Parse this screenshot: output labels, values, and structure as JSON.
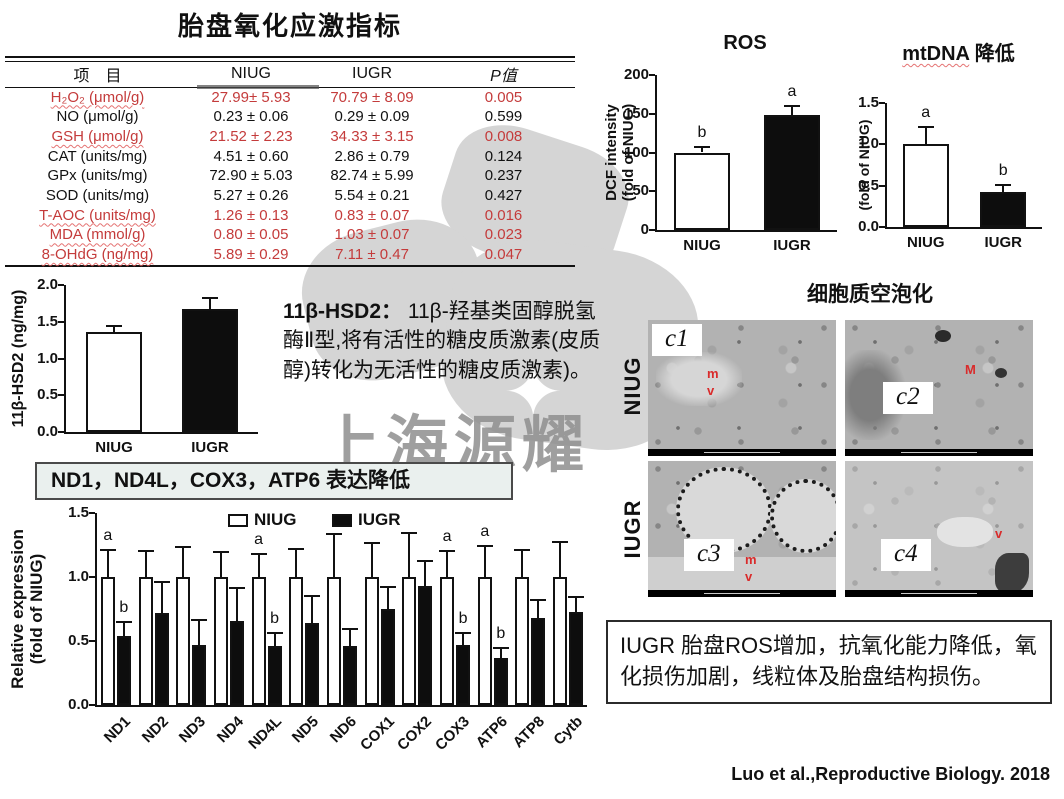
{
  "slide": {
    "title": "胎盘氧化应激指标",
    "watermark_text": "上海源耀",
    "citation": "Luo et al.,Reproductive Biology. 2018",
    "summary": "IUGR 胎盘ROS增加，抗氧化能力降低，氧化损伤加剧，线粒体及胎盘结构损伤。",
    "gene_box": "ND1，ND4L，COX3，ATP6 表达降低",
    "hsd2_note_bold": "11β-HSD2：",
    "hsd2_note_rest": " 11β-羟基类固醇脱氢酶Ⅱ型,将有活性的糖皮质激素(皮质醇)转化为无活性的糖皮质激素)。"
  },
  "table": {
    "headers": [
      "项　目",
      "NIUG",
      "IUGR",
      "P值"
    ],
    "rows": [
      {
        "label": "H₂O₂ (μmol/g)",
        "niug": "27.99± 5.93",
        "iugr": "70.79 ± 8.09",
        "p": "0.005",
        "highlight": true
      },
      {
        "label": "NO (μmol/g)",
        "niug": "0.23 ± 0.06",
        "iugr": "0.29 ± 0.09",
        "p": "0.599",
        "highlight": false
      },
      {
        "label": "GSH (μmol/g)",
        "niug": "21.52 ± 2.23",
        "iugr": "34.33 ± 3.15",
        "p": "0.008",
        "highlight": true
      },
      {
        "label": "CAT (units/mg)",
        "niug": "4.51 ± 0.60",
        "iugr": "2.86 ± 0.79",
        "p": "0.124",
        "highlight": false
      },
      {
        "label": "GPx (units/mg)",
        "niug": "72.90 ± 5.03",
        "iugr": "82.74 ± 5.99",
        "p": "0.237",
        "highlight": false
      },
      {
        "label": "SOD (units/mg)",
        "niug": "5.27 ± 0.26",
        "iugr": "5.54 ± 0.21",
        "p": "0.427",
        "highlight": false
      },
      {
        "label": "T-AOC (units/mg)",
        "niug": "1.26 ± 0.13",
        "iugr": "0.83 ± 0.07",
        "p": "0.016",
        "highlight": true
      },
      {
        "label": "MDA (mmol/g)",
        "niug": "0.80 ± 0.05",
        "iugr": "1.03 ± 0.07",
        "p": "0.023",
        "highlight": true
      },
      {
        "label": "8-OHdG (ng/mg)",
        "niug": "5.89 ± 0.29",
        "iugr": "7.11 ± 0.47",
        "p": "0.047",
        "highlight": true
      }
    ]
  },
  "legend": {
    "niug": "NIUG",
    "iugr": "IUGR"
  },
  "em": {
    "title": "细胞质空泡化",
    "row_labels": [
      "NIUG",
      "IUGR"
    ],
    "panels": [
      {
        "label": "c1",
        "annotations": [
          "m",
          "v"
        ]
      },
      {
        "label": "c2",
        "annotations": [
          "M"
        ]
      },
      {
        "label": "c3",
        "annotations": [
          "m",
          "v"
        ]
      },
      {
        "label": "c4",
        "annotations": [
          "v"
        ]
      }
    ]
  },
  "chart_data": [
    {
      "id": "ros",
      "type": "bar",
      "title": "ROS",
      "ylabel_lines": [
        "DCF intensity",
        "(fold of NIUG)"
      ],
      "categories": [
        "NIUG",
        "IUGR"
      ],
      "values": [
        100,
        148
      ],
      "errors": [
        8,
        13
      ],
      "letters": [
        "b",
        "a"
      ],
      "bar_colors": [
        "white",
        "black"
      ],
      "ylim": [
        0,
        200
      ],
      "yticks": [
        "0",
        "50",
        "100",
        "150",
        "200"
      ]
    },
    {
      "id": "mtdna",
      "type": "bar",
      "title_em": "mtDNA",
      "title_rest": " 降低",
      "ylabel_lines": [
        "(fold of NIUG)"
      ],
      "categories": [
        "NIUG",
        "IUGR"
      ],
      "values": [
        1.0,
        0.42
      ],
      "errors": [
        0.22,
        0.1
      ],
      "letters": [
        "a",
        "b"
      ],
      "bar_colors": [
        "white",
        "black"
      ],
      "ylim": [
        0,
        1.5
      ],
      "yticks": [
        "0.0",
        "0.5",
        "1.0",
        "1.5"
      ]
    },
    {
      "id": "hsd2",
      "type": "bar",
      "title": "",
      "ylabel_lines": [
        "11β-HSD2 (ng/mg)"
      ],
      "categories": [
        "NIUG",
        "IUGR"
      ],
      "values": [
        1.36,
        1.68
      ],
      "errors": [
        0.09,
        0.16
      ],
      "letters": [
        "",
        ""
      ],
      "bar_colors": [
        "white",
        "black"
      ],
      "ylim": [
        0,
        2.0
      ],
      "yticks": [
        "0.0",
        "0.5",
        "1.0",
        "1.5",
        "2.0"
      ]
    },
    {
      "id": "expression",
      "type": "grouped-bar",
      "ylabel_lines": [
        "Relative expression",
        "(fold of NIUG)"
      ],
      "categories": [
        "ND1",
        "ND2",
        "ND3",
        "ND4",
        "ND4L",
        "ND5",
        "ND6",
        "COX1",
        "COX2",
        "COX3",
        "ATP6",
        "ATP8",
        "Cytb"
      ],
      "series": [
        {
          "name": "NIUG",
          "color": "white",
          "values": [
            1,
            1,
            1,
            1,
            1,
            1,
            1,
            1,
            1,
            1,
            1,
            1,
            1
          ],
          "errors": [
            0.22,
            0.21,
            0.24,
            0.2,
            0.19,
            0.23,
            0.34,
            0.27,
            0.35,
            0.21,
            0.25,
            0.22,
            0.28
          ],
          "letters": [
            "a",
            "",
            "",
            "",
            "a",
            "",
            "",
            "",
            "",
            "a",
            "a",
            "",
            ""
          ]
        },
        {
          "name": "IUGR",
          "color": "black",
          "values": [
            0.54,
            0.72,
            0.47,
            0.66,
            0.46,
            0.64,
            0.46,
            0.75,
            0.93,
            0.47,
            0.37,
            0.68,
            0.73
          ],
          "errors": [
            0.12,
            0.25,
            0.2,
            0.26,
            0.11,
            0.22,
            0.14,
            0.18,
            0.2,
            0.1,
            0.08,
            0.15,
            0.12
          ],
          "letters": [
            "b",
            "",
            "",
            "",
            "b",
            "",
            "",
            "",
            "",
            "b",
            "b",
            "",
            ""
          ]
        }
      ],
      "ylim": [
        0,
        1.5
      ],
      "yticks": [
        "0.0",
        "0.5",
        "1.0",
        "1.5"
      ]
    }
  ],
  "colors": {
    "accent_red": "#c43b3b",
    "annotation_red": "#d92b2b",
    "bar_black": "#0d0d0d",
    "bar_white": "#ffffff"
  }
}
